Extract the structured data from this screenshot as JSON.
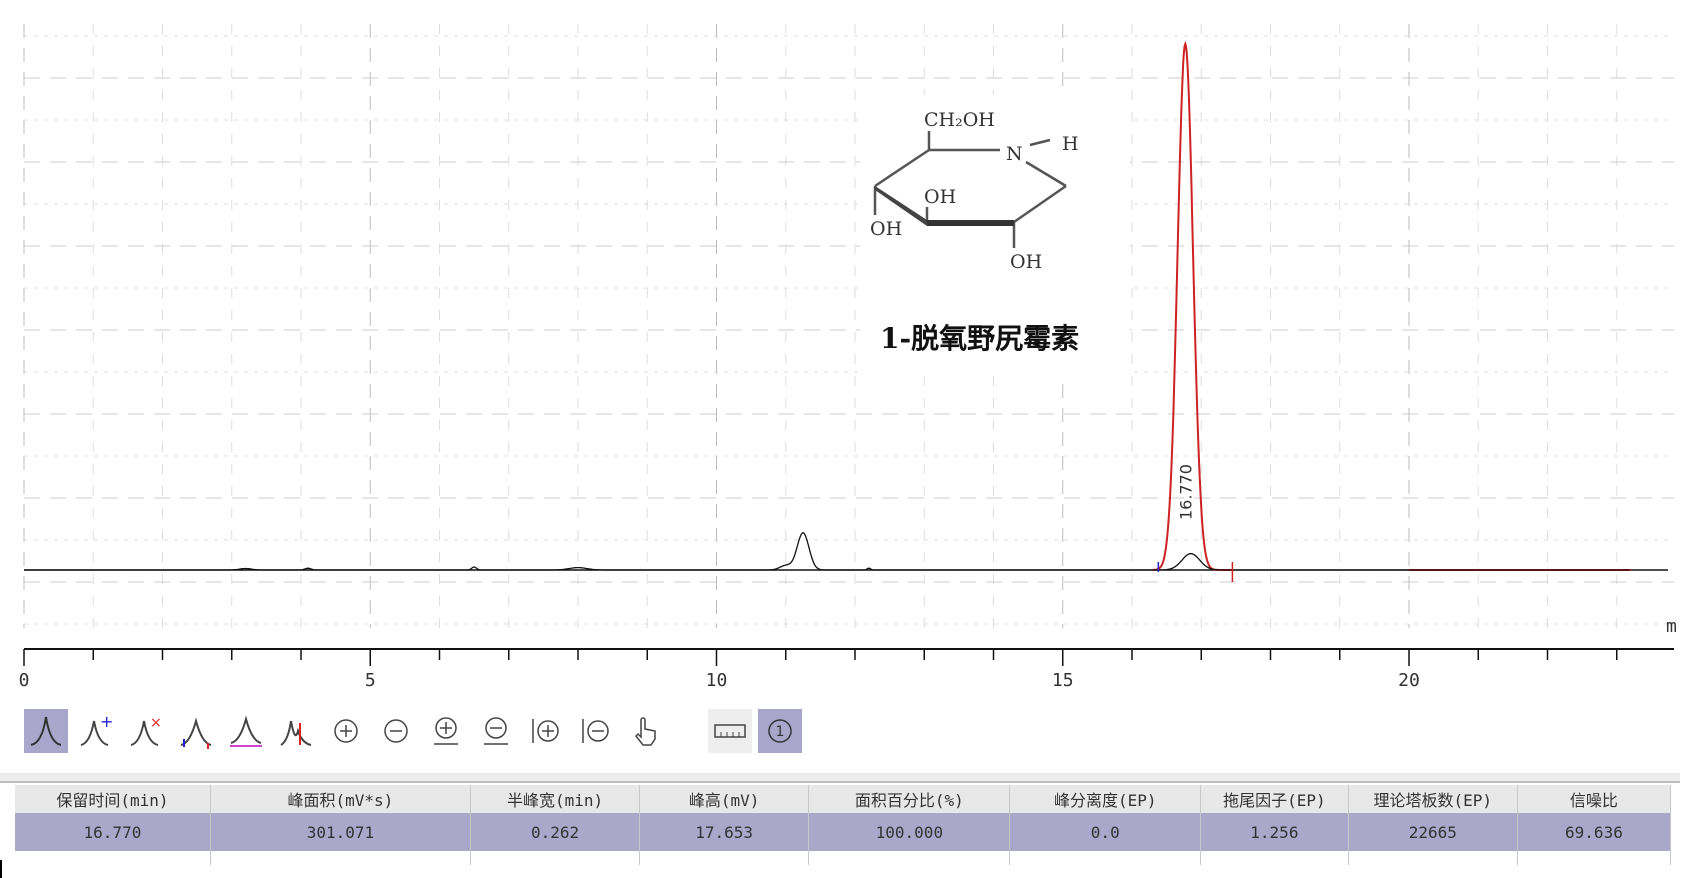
{
  "chart_data": {
    "type": "line",
    "title": "",
    "xlabel": "m",
    "ylabel": "",
    "xlim": [
      0,
      23.8
    ],
    "x_ticks": [
      "0",
      "5",
      "10",
      "15",
      "20"
    ],
    "grid": true,
    "peak_label": "16.770",
    "series": [
      {
        "color": "#cc2222",
        "peaks": [
          {
            "rt": 16.77,
            "height": 17.653,
            "width": 0.262
          }
        ],
        "baseline_segment": [
          20.0,
          23.2
        ]
      },
      {
        "color": "#111111",
        "peaks": [
          {
            "rt": 3.2,
            "height": 0.05,
            "width": 0.2
          },
          {
            "rt": 4.1,
            "height": 0.06,
            "width": 0.1
          },
          {
            "rt": 6.5,
            "height": 0.1,
            "width": 0.08
          },
          {
            "rt": 8.0,
            "height": 0.08,
            "width": 0.3
          },
          {
            "rt": 11.0,
            "height": 0.15,
            "width": 0.2
          },
          {
            "rt": 11.25,
            "height": 1.25,
            "width": 0.2
          },
          {
            "rt": 12.2,
            "height": 0.06,
            "width": 0.06
          },
          {
            "rt": 16.85,
            "height": 0.55,
            "width": 0.3
          }
        ]
      }
    ]
  },
  "structure": {
    "ch2oh": "CH₂OH",
    "n": "N",
    "h": "H",
    "oh1": "OH",
    "oh2": "OH",
    "oh3": "OH",
    "caption": "1-脱氧野尻霉素"
  },
  "toolbar": {
    "icons": [
      "peak-icon",
      "add-peak-icon",
      "delete-peak-icon",
      "split-peak-icon",
      "baseline-icon",
      "merge-peak-icon",
      "zoom-in-icon",
      "zoom-out-icon",
      "zoom-in-y-icon",
      "zoom-out-y-icon",
      "zoom-in-x-icon",
      "zoom-out-x-icon",
      "hand-pan-icon",
      "ruler-icon",
      "circled-one-icon"
    ],
    "active_color": "#a9a6cb"
  },
  "table": {
    "headers": [
      "保留时间(min)",
      "峰面积(mV*s)",
      "半峰宽(min)",
      "峰高(mV)",
      "面积百分比(%)",
      "峰分离度(EP)",
      "拖尾因子(EP)",
      "理论塔板数(EP)",
      "信噪比"
    ],
    "rows": [
      [
        "16.770",
        "301.071",
        "0.262",
        "17.653",
        "100.000",
        "0.0",
        "1.256",
        "22665",
        "69.636"
      ]
    ],
    "selected_color": "#aaa8ca"
  }
}
